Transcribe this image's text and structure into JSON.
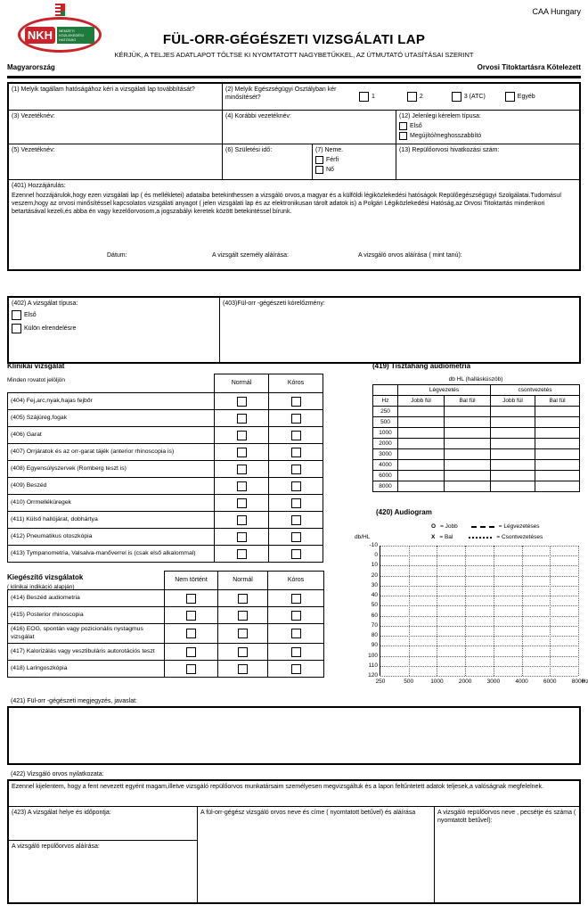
{
  "header": {
    "caa": "CAA Hungary",
    "logo": {
      "nkh": "NKH",
      "org": "NEMZETI KÖZLEKEDÉSI HATÓSÁG"
    },
    "title": "FÜL-ORR-GÉGÉSZETI VIZSGÁLATI LAP",
    "subtitle": "KÉRJÜK, A TELJES ADATLAPOT TÖLTSE KI NYOMTATOTT NAGYBETŰKKEL, AZ ÚTMUTATÓ UTASÍTÁSAI SZERINT",
    "country": "Magyarország",
    "confidential": "Orvosi Titoktartásra Kötelezett"
  },
  "fields": {
    "f1": "(1) Melyik tagállam hatóságához kéri a vizsgálati lap továbbítását?",
    "f2": "(2) Melyik Egészségügyi Osztályban kér minősítését?",
    "f2_options": [
      "1",
      "2",
      "3 (ATC)",
      "Egyéb"
    ],
    "f3": "(3) Vezetéknév:",
    "f4": "(4) Korábbi vezetéknév:",
    "f12": "(12) Jelenlegi kérelem típusa:",
    "f12_options": [
      "Első",
      "Megújító/meghosszabbító"
    ],
    "f5": "(5) Vezetéknév:",
    "f6": "(6) Születési idő:",
    "f7": "(7) Neme.",
    "f7_options": [
      "Férfi",
      "Nő"
    ],
    "f13": "(13) Repülőorvosi hivatkozási szám:"
  },
  "consent": {
    "label": "(401) Hozzájárulás:",
    "text": "Ezennel hozzájárulok,hogy ezen vizsgálati lap ( és mellékletei) adataiba betekinthessen a vizsgáló orvos,a magyar és a külföldi légiközlekedési hatóságok Repülőegészségügyi Szolgálatai.Tudomásul veszem,hogy az orvosi minősítéssel kapcsolatos vizsgálati anyagot ( jelen vizsgálati lap és az elektronikusan tárolt adatok is) a Polgári Légiközlekedési Hatóság,az Orvosi Titoktartás mindenkori betartásával kezeli,és abba én vagy kezelőorvosom,a jogszabályi keretek között betekintéssel bírunk.",
    "date_label": "Dátum:",
    "sig_person": "A vizsgált személy aláírása:",
    "sig_doctor": "A vizsgáló orvos aláírása ( mint tanú):"
  },
  "exam_type": {
    "label": "(402) A vizsgálat típusa:",
    "options": [
      "Első",
      "Külön elrendelésre"
    ],
    "history_label": "(403)Fül-orr -gégészeti kórelőzmény:"
  },
  "clinical": {
    "title": "Klinikai vizsgálat",
    "subtitle": "Minden rovatot jelöljön",
    "columns": [
      "Normál",
      "Kóros"
    ],
    "rows": [
      "(404) Fej,arc,nyak,hajas fejbőr",
      "(405) Szájüreg,fogak",
      "(406) Garat",
      "(407) Orrjáratok és az orr-garat tájék (anterior rhinoscopia is)",
      "(408) Egyensúlyszervek (Romberg teszt is)",
      "(409) Beszéd",
      "(410) Orrmelléküregek",
      "(411) Külső hallójárat, dobhártya",
      "(412) Pneumatikus otoszkópia",
      "(413) Tympanometria, Valsalva-manőverrel is (csak első alkalommal)"
    ]
  },
  "supplementary": {
    "title": "Kiegészítő vizsgálatok",
    "subtitle": "( klinikai indikáció alapján)",
    "columns": [
      "Nem történt",
      "Normál",
      "Kóros"
    ],
    "rows": [
      "(414) Beszéd audiometria",
      "(415) Posterior rhinoscopia",
      "(416) EOG, spontán vagy pozicionális nystagmus vizsgálat",
      "(417) Kalorizálás vagy vesztibuláris autorotációs teszt",
      "(418) Laringoszkópia"
    ]
  },
  "audiometry": {
    "title": "(419) Tisztahang audiometria",
    "unit": "db HL (hallásküszöb)",
    "freq_header": "Hz",
    "groups": [
      "Légvezetés",
      "csontvezetés"
    ],
    "ear_columns": [
      "Jobb fül",
      "Bal fül"
    ],
    "frequencies": [
      "250",
      "500",
      "1000",
      "2000",
      "3000",
      "4000",
      "6000",
      "8000"
    ]
  },
  "audiogram": {
    "title": "(420) Audiogram",
    "ylabel": "db/HL",
    "legend": [
      {
        "symbol": "O",
        "label": "= Jobb"
      },
      {
        "symbol": "X",
        "label": "= Bal"
      },
      {
        "sample": "dash",
        "label": "= Légvezetéses"
      },
      {
        "sample": "dot",
        "label": "= Csontvezetéses"
      }
    ],
    "y_ticks": [
      -10,
      0,
      10,
      20,
      30,
      40,
      50,
      60,
      70,
      80,
      90,
      100,
      110,
      120
    ],
    "x_ticks": [
      "250",
      "500",
      "1000",
      "2000",
      "3000",
      "4000",
      "6000",
      "8000"
    ],
    "x_unit": "Hz"
  },
  "chart_data": {
    "type": "line",
    "title": "(420) Audiogram",
    "xlabel": "Hz",
    "ylabel": "db/HL",
    "x_ticks": [
      "250",
      "500",
      "1000",
      "2000",
      "3000",
      "4000",
      "6000",
      "8000"
    ],
    "y_ticks": [
      -10,
      0,
      10,
      20,
      30,
      40,
      50,
      60,
      70,
      80,
      90,
      100,
      110,
      120
    ],
    "ylim": [
      -10,
      120
    ],
    "grid": true,
    "legend_position": "top",
    "series": []
  },
  "remarks": {
    "label": "(421) Fül-orr -gégészeti megjegyzés, javaslat:"
  },
  "declaration": {
    "label": "(422) Vizsgáló orvos nyilatkozata:",
    "text": "Ezennel kijelentem, hogy a fent nevezett egyént magam,illetve vizsgáló repülőorvos munkatársaim személyesen megvizsgáltuk és a lapon feltűntetett adatok teljesek,a valóságnak megfelelnek."
  },
  "footer": {
    "place": "(423) A vizsgálat helye és időpontja:",
    "ame_sig": "A vizsgáló repülőorvos aláírása:",
    "ent_doctor": "A fül-orr-gégész vizsgáló orvos neve és címe ( nyomtatott betűvel) és aláírása",
    "ame_name": "A vizsgáló repülőorvos neve , pecsétje és száma ( nyomtatott betűvel):"
  }
}
